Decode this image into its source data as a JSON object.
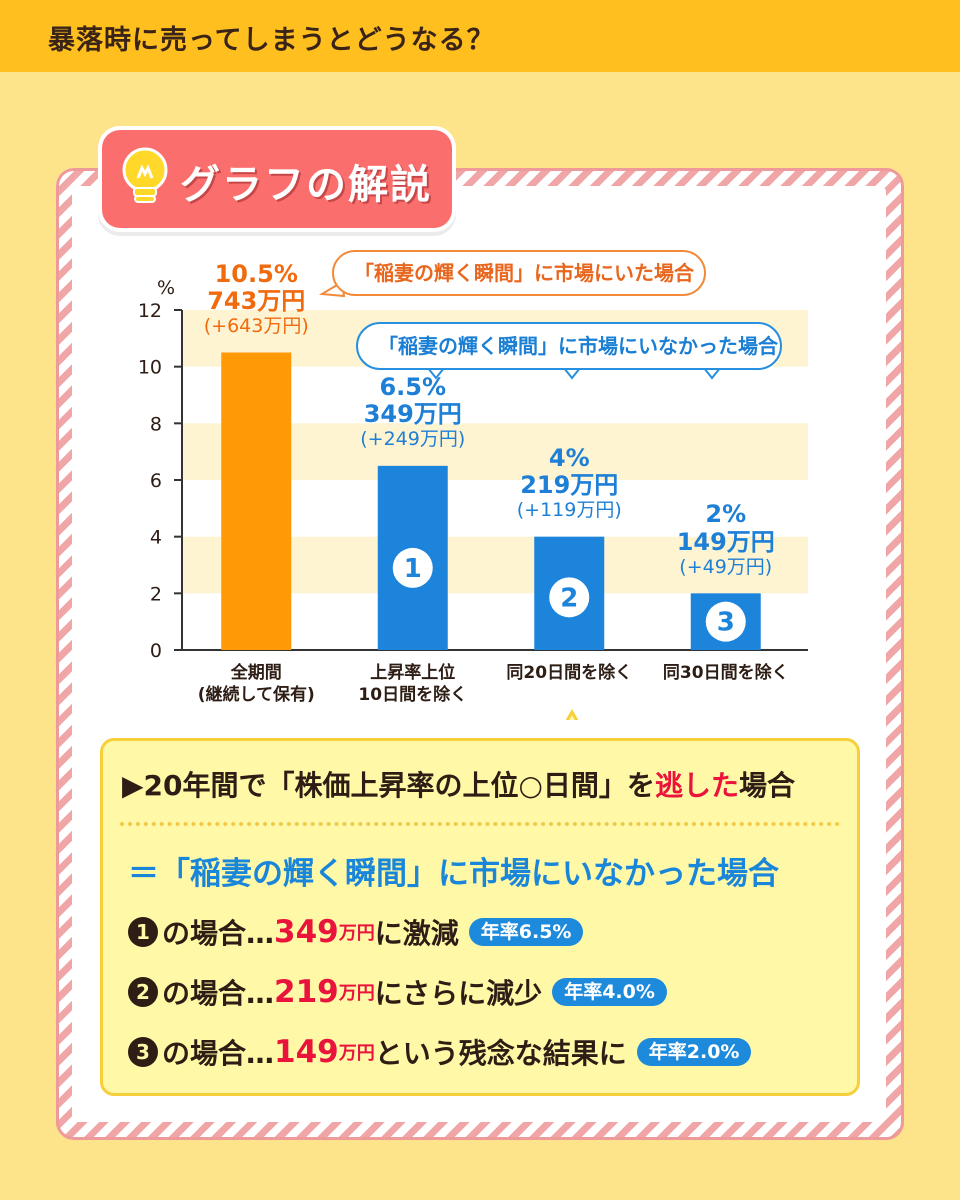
{
  "header": {
    "title": "暴落時に売ってしまうとどうなる？"
  },
  "badge": {
    "title": "グラフの解説"
  },
  "callouts": {
    "in_market": "「稲妻の輝く瞬間」に市場にいた場合",
    "not_in_market": "「稲妻の輝く瞬間」に市場にいなかった場合"
  },
  "chart_data": {
    "type": "bar",
    "y_unit": "%",
    "ylim": [
      0,
      12
    ],
    "yticks": [
      "0",
      "2",
      "4",
      "6",
      "8",
      "10",
      "12"
    ],
    "categories": [
      [
        "全期間",
        "(継続して保有)"
      ],
      [
        "上昇率上位",
        "10日間を除く"
      ],
      [
        "同20日間を除く"
      ],
      [
        "同30日間を除く"
      ]
    ],
    "values": [
      10.5,
      6.5,
      4,
      2
    ],
    "bar_colors": [
      "#ff9a06",
      "#1d84dc",
      "#1d84dc",
      "#1d84dc"
    ],
    "value_labels": [
      "10.5%",
      "6.5%",
      "4%",
      "2%"
    ],
    "amount_labels": [
      "743万円",
      "349万円",
      "219万円",
      "149万円"
    ],
    "gain_labels": [
      "(+643万円)",
      "(+249万円)",
      "(+119万円)",
      "(+49万円)"
    ],
    "bar_markers": [
      "",
      "❶",
      "❷",
      "❸"
    ]
  },
  "info": {
    "heading_prefix": "▶20年間で「株価上昇率の上位○日間」を",
    "heading_red": "逃した",
    "heading_suffix": "場合",
    "subheading": "＝「稲妻の輝く瞬間」に市場にいなかった場合",
    "lines": [
      {
        "marker": "1",
        "prefix": "の場合…",
        "num": "349",
        "unit": "万円",
        "suffix": "に激減",
        "pill": "年率6.5%"
      },
      {
        "marker": "2",
        "prefix": "の場合…",
        "num": "219",
        "unit": "万円",
        "suffix": "にさらに減少",
        "pill": "年率4.0%"
      },
      {
        "marker": "3",
        "prefix": "の場合…",
        "num": "149",
        "unit": "万円",
        "suffix": "という残念な結果に",
        "pill": "年率2.0%"
      }
    ]
  }
}
